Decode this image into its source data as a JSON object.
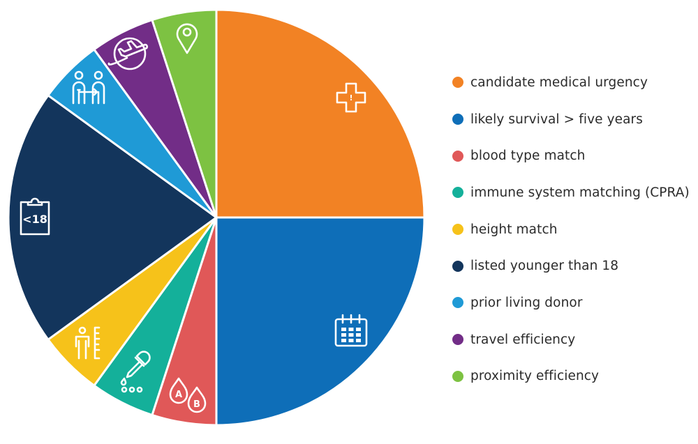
{
  "chart_data": {
    "type": "pie",
    "title": "",
    "legend_position": "right",
    "center": [
      310,
      312
    ],
    "radius": 298,
    "start_angle_deg": 0,
    "direction": "clockwise from 12 o'clock",
    "categories": [
      "candidate medical urgency",
      "likely survival > five years",
      "blood type match",
      "immune system matching (CPRA)",
      "height match",
      "listed younger than 18",
      "prior living donor",
      "travel efficiency",
      "proximity efficiency"
    ],
    "values": [
      25,
      25,
      5,
      5,
      5,
      20,
      5,
      5,
      5
    ],
    "unit": "percent (estimated from slice angles)",
    "colors": [
      "#F28224",
      "#0E6EB8",
      "#E05858",
      "#14B09A",
      "#F6C21A",
      "#13355C",
      "#1F9AD6",
      "#722D87",
      "#7DC242"
    ],
    "slice_icons": [
      "medical-cross-alert-icon",
      "calendar-icon",
      "blood-drops-ab-icon",
      "dropper-icon",
      "height-ruler-person-icon",
      "clipboard-under-18-icon",
      "living-donor-exchange-icon",
      "airplane-globe-icon",
      "map-pin-icon"
    ],
    "icon_texts": {
      "clipboard": "<18",
      "drop_a": "A",
      "drop_b": "B",
      "alert": "!"
    }
  },
  "legend": {
    "items": [
      {
        "label": "candidate medical urgency",
        "color": "#F28224"
      },
      {
        "label": "likely survival > five years",
        "color": "#0E6EB8"
      },
      {
        "label": "blood type match",
        "color": "#E05858"
      },
      {
        "label": "immune system matching (CPRA)",
        "color": "#14B09A"
      },
      {
        "label": "height match",
        "color": "#F6C21A"
      },
      {
        "label": "listed younger than 18",
        "color": "#13355C"
      },
      {
        "label": "prior living donor",
        "color": "#1F9AD6"
      },
      {
        "label": "travel efficiency",
        "color": "#722D87"
      },
      {
        "label": "proximity efficiency",
        "color": "#7DC242"
      }
    ]
  }
}
